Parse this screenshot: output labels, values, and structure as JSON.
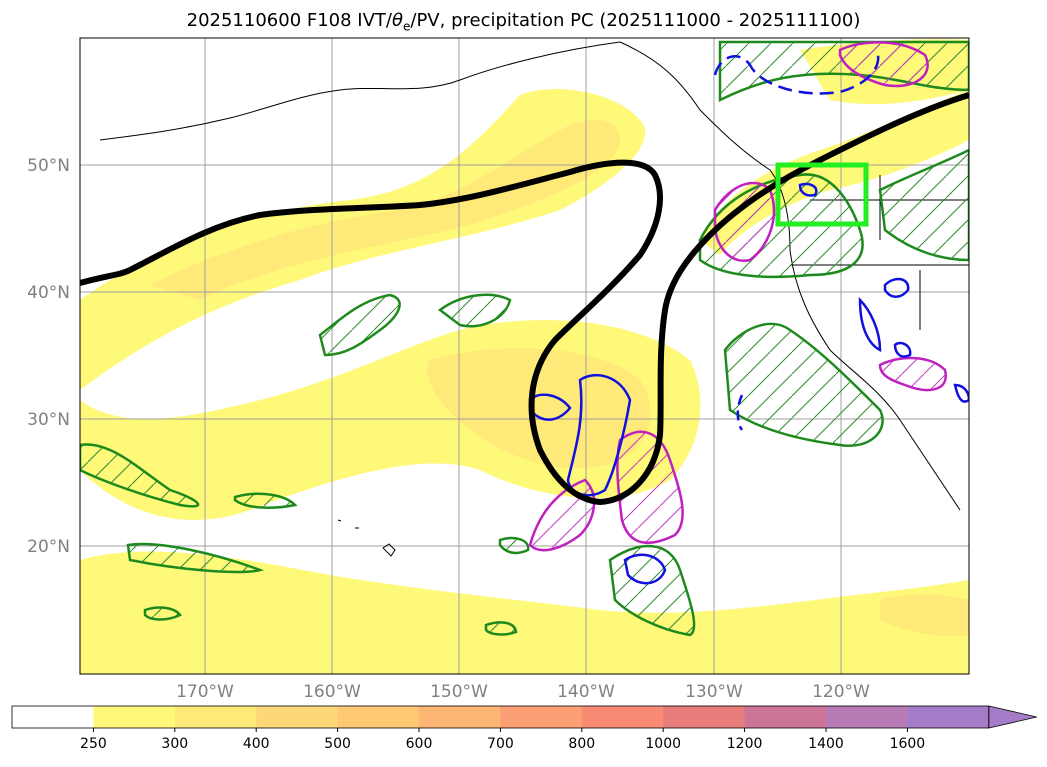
{
  "title": {
    "prefix": "2025110600 F108 IVT/",
    "theta": "θ",
    "sub": "e",
    "suffix": "/PV, precipitation PC (2025111000 - 2025111100)"
  },
  "map": {
    "lat_labels": [
      "50°N",
      "40°N",
      "30°N",
      "20°N"
    ],
    "lon_labels": [
      "170°W",
      "160°W",
      "150°W",
      "140°W",
      "130°W",
      "120°W"
    ]
  },
  "colorbar": {
    "ticks": [
      "250",
      "300",
      "400",
      "500",
      "600",
      "700",
      "800",
      "1000",
      "1200",
      "1400",
      "1600"
    ],
    "colors": [
      "#ffffff",
      "#fff97a",
      "#fee979",
      "#fed877",
      "#fec874",
      "#fdb574",
      "#fc9f74",
      "#f98a74",
      "#e87c7b",
      "#cd7597",
      "#b77bb5",
      "#a57cc7"
    ]
  }
}
